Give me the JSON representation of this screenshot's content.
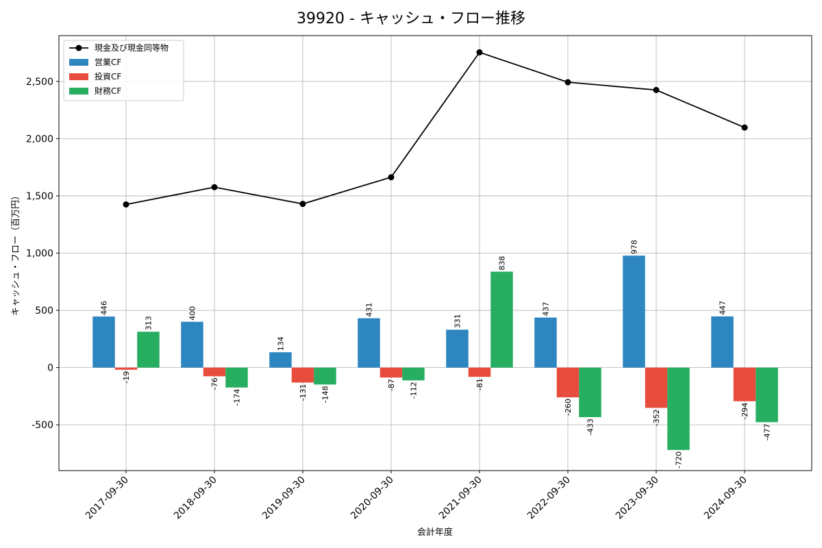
{
  "chart_data": {
    "type": "bar",
    "title": "39920 - キャッシュ・フロー推移",
    "xlabel": "会計年度",
    "ylabel": "キャッシュ・フロー（百万円）",
    "categories": [
      "2017-09-30",
      "2018-09-30",
      "2019-09-30",
      "2020-09-30",
      "2021-09-30",
      "2022-09-30",
      "2023-09-30",
      "2024-09-30"
    ],
    "ylim": [
      -900,
      2900
    ],
    "yticks": [
      -500,
      0,
      500,
      1000,
      1500,
      2000,
      2500
    ],
    "ytick_labels": [
      "-500",
      "0",
      "500",
      "1,000",
      "1,500",
      "2,000",
      "2,500"
    ],
    "grid": true,
    "legend_position": "top-left",
    "series": [
      {
        "name": "営業CF",
        "kind": "bar",
        "color": "#2e86c1",
        "values": [
          446,
          400,
          134,
          431,
          331,
          437,
          978,
          447
        ]
      },
      {
        "name": "投資CF",
        "kind": "bar",
        "color": "#e74c3c",
        "values": [
          -19,
          -76,
          -131,
          -87,
          -81,
          -260,
          -352,
          -294
        ]
      },
      {
        "name": "財務CF",
        "kind": "bar",
        "color": "#27ae60",
        "values": [
          313,
          -174,
          -148,
          -112,
          838,
          -433,
          -720,
          -477
        ]
      },
      {
        "name": "現金及び現金同等物",
        "kind": "line",
        "color": "#000000",
        "values": [
          1425,
          1576,
          1430,
          1663,
          2754,
          2493,
          2425,
          2097
        ]
      }
    ]
  }
}
